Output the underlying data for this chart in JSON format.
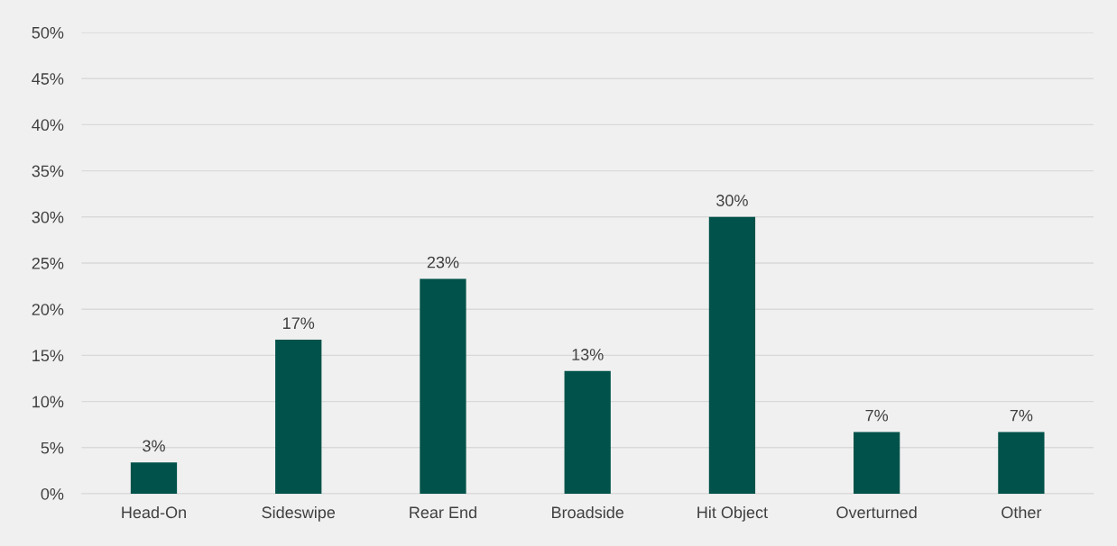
{
  "chart_data": {
    "type": "bar",
    "categories": [
      "Head-On",
      "Sideswipe",
      "Rear End",
      "Broadside",
      "Hit Object",
      "Overturned",
      "Other"
    ],
    "values": [
      3.4,
      16.7,
      23.3,
      13.3,
      30,
      6.7,
      6.7
    ],
    "value_labels": [
      "3%",
      "17%",
      "23%",
      "13%",
      "30%",
      "7%",
      "7%"
    ],
    "color": "#00524a",
    "ylim": [
      0,
      50
    ],
    "yticks": [
      {
        "value": 0,
        "label": "0%"
      },
      {
        "value": 5,
        "label": "5%"
      },
      {
        "value": 10,
        "label": "10%"
      },
      {
        "value": 15,
        "label": "15%"
      },
      {
        "value": 20,
        "label": "20%"
      },
      {
        "value": 25,
        "label": "25%"
      },
      {
        "value": 30,
        "label": "30%"
      },
      {
        "value": 35,
        "label": "35%"
      },
      {
        "value": 40,
        "label": "40%"
      },
      {
        "value": 45,
        "label": "45%"
      },
      {
        "value": 50,
        "label": "50%"
      }
    ],
    "grid": "y",
    "legend": false
  }
}
